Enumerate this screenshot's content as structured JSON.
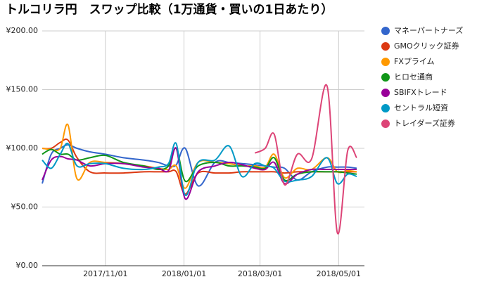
{
  "chart_data": {
    "type": "line",
    "title": "トルコリラ円　スワップ比較（1万通貨・買いの1日あたり）",
    "x": [
      "2017/09/13",
      "2017/09/20",
      "2017/09/27",
      "2017/10/03",
      "2017/10/10",
      "2017/10/20",
      "2017/11/01",
      "2017/11/15",
      "2017/12/01",
      "2017/12/12",
      "2017/12/20",
      "2017/12/26",
      "2018/01/02",
      "2018/01/12",
      "2018/01/25",
      "2018/02/05",
      "2018/02/15",
      "2018/02/25",
      "2018/03/05",
      "2018/03/12",
      "2018/03/20",
      "2018/03/30",
      "2018/04/10",
      "2018/04/22",
      "2018/04/30",
      "2018/05/08",
      "2018/05/15"
    ],
    "xlim": [
      "2017/09/13",
      "2018/05/21"
    ],
    "xticks": [
      "2017/11/01",
      "2018/01/01",
      "2018/03/01",
      "2018/05/01"
    ],
    "ylim": [
      0,
      200
    ],
    "yticks": [
      {
        "value": 0,
        "label": "¥0.00"
      },
      {
        "value": 50,
        "label": "¥50.00"
      },
      {
        "value": 100,
        "label": "¥100.00"
      },
      {
        "value": 150,
        "label": "¥150.00"
      },
      {
        "value": 200,
        "label": "¥200.00"
      }
    ],
    "grid": true,
    "legend": "right",
    "series": [
      {
        "name": "マネーパートナーズ",
        "color": "#3366cc",
        "values": [
          70,
          95,
          100,
          103,
          100,
          97,
          95,
          92,
          90,
          88,
          85,
          86,
          100,
          68,
          88,
          88,
          87,
          86,
          85,
          84,
          83,
          73,
          80,
          84,
          84,
          84,
          83
        ]
      },
      {
        "name": "GMOクリック証券",
        "color": "#dc3912",
        "values": [
          100,
          100,
          105,
          107,
          92,
          80,
          79,
          79,
          80,
          80,
          80,
          80,
          61,
          79,
          79,
          79,
          80,
          80,
          80,
          80,
          79,
          80,
          80,
          80,
          80,
          80,
          80
        ]
      },
      {
        "name": "FXプライム",
        "color": "#ff9900",
        "values": [
          100,
          99,
          100,
          120,
          74,
          88,
          88,
          87,
          85,
          83,
          82,
          85,
          66,
          88,
          88,
          87,
          85,
          85,
          84,
          95,
          75,
          83,
          82,
          92,
          80,
          81,
          80
        ]
      },
      {
        "name": "ヒロセ通商",
        "color": "#109618",
        "values": [
          95,
          99,
          95,
          95,
          90,
          92,
          94,
          88,
          85,
          82,
          85,
          100,
          72,
          85,
          88,
          85,
          85,
          84,
          83,
          92,
          73,
          78,
          80,
          80,
          80,
          79,
          78
        ]
      },
      {
        "name": "SBIFXトレード",
        "color": "#990099",
        "values": [
          73,
          90,
          93,
          91,
          90,
          85,
          87,
          87,
          84,
          83,
          81,
          100,
          57,
          80,
          85,
          88,
          86,
          83,
          82,
          88,
          70,
          78,
          82,
          82,
          82,
          82,
          82
        ]
      },
      {
        "name": "セントラル短資",
        "color": "#0099c6",
        "values": [
          90,
          83,
          95,
          104,
          85,
          87,
          87,
          83,
          82,
          84,
          87,
          104,
          60,
          88,
          90,
          102,
          76,
          87,
          85,
          83,
          72,
          73,
          76,
          92,
          70,
          78,
          76
        ]
      },
      {
        "name": "トレイダーズ証券",
        "color": "#dd4477",
        "values": [
          null,
          null,
          null,
          null,
          null,
          null,
          null,
          null,
          null,
          null,
          null,
          null,
          null,
          null,
          null,
          null,
          null,
          96,
          100,
          112,
          69,
          95,
          91,
          153,
          28,
          98,
          92
        ]
      }
    ]
  }
}
